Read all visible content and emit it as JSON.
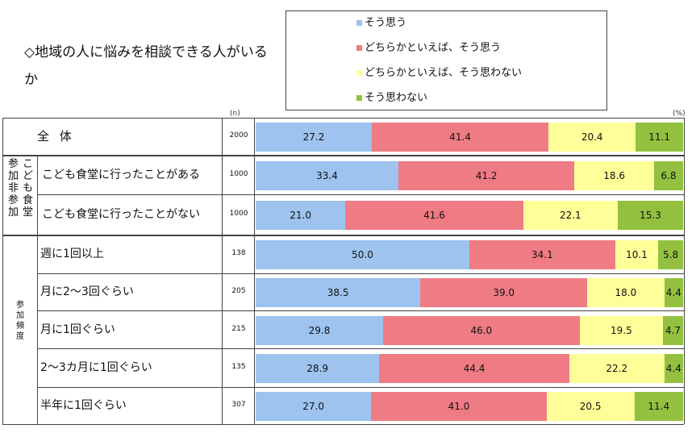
{
  "title": "◇地域の人に悩みを相談できる人がいるか",
  "n_header": "(n)",
  "pct_header": "(%)",
  "chart_data": {
    "type": "bar",
    "orientation": "horizontal",
    "stacked": true,
    "percent": true,
    "title": "◇地域の人に悩みを相談できる人がいるか",
    "legend": [
      {
        "name": "そう思う",
        "color": "#9dc3ee"
      },
      {
        "name": "どちらかといえば、そう思う",
        "color": "#ef7b84"
      },
      {
        "name": "どちらかといえば、そう思わない",
        "color": "#ffff99"
      },
      {
        "name": "そう思わない",
        "color": "#93c13f"
      }
    ],
    "groups": [
      {
        "label": "",
        "rows": [
          0
        ]
      },
      {
        "label_col1": "参加非参加",
        "label_col2": "こども食堂",
        "rows": [
          1,
          2
        ]
      },
      {
        "label": "参加頻度",
        "rows": [
          3,
          4,
          5,
          6,
          7
        ]
      }
    ],
    "rows": [
      {
        "label": "全 体",
        "n": "2000",
        "values": [
          27.2,
          41.4,
          20.4,
          11.1
        ],
        "labels": [
          "27.2",
          "41.4",
          "20.4",
          "11.1"
        ]
      },
      {
        "label": "こども食堂に行ったことがある",
        "n": "1000",
        "values": [
          33.4,
          41.2,
          18.6,
          6.8
        ],
        "labels": [
          "33.4",
          "41.2",
          "18.6",
          "6.8"
        ]
      },
      {
        "label": "こども食堂に行ったことがない",
        "n": "1000",
        "values": [
          21.0,
          41.6,
          22.1,
          15.3
        ],
        "labels": [
          "21.0",
          "41.6",
          "22.1",
          "15.3"
        ]
      },
      {
        "label": "週に1回以上",
        "n": "138",
        "values": [
          50.0,
          34.1,
          10.1,
          5.8
        ],
        "labels": [
          "50.0",
          "34.1",
          "10.1",
          "5.8"
        ]
      },
      {
        "label": "月に2～3回ぐらい",
        "n": "205",
        "values": [
          38.5,
          39.0,
          18.0,
          4.4
        ],
        "labels": [
          "38.5",
          "39.0",
          "18.0",
          "4.4"
        ]
      },
      {
        "label": "月に1回ぐらい",
        "n": "215",
        "values": [
          29.8,
          46.0,
          19.5,
          4.7
        ],
        "labels": [
          "29.8",
          "46.0",
          "19.5",
          "4.7"
        ]
      },
      {
        "label": "2～3カ月に1回ぐらい",
        "n": "135",
        "values": [
          28.9,
          44.4,
          22.2,
          4.4
        ],
        "labels": [
          "28.9",
          "44.4",
          "22.2",
          "4.4"
        ]
      },
      {
        "label": "半年に1回ぐらい",
        "n": "307",
        "values": [
          27.0,
          41.0,
          20.5,
          11.4
        ],
        "labels": [
          "27.0",
          "41.0",
          "20.5",
          "11.4"
        ]
      }
    ],
    "xlim": [
      0,
      100
    ]
  }
}
